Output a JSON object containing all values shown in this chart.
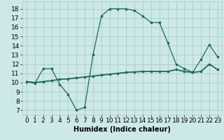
{
  "line1_x": [
    0,
    1,
    2,
    3,
    4,
    5,
    6,
    7,
    8,
    9,
    10,
    11,
    12,
    13,
    14,
    15,
    16,
    17,
    18,
    19,
    20,
    21,
    22,
    23
  ],
  "line1_y": [
    10.1,
    9.9,
    11.5,
    11.5,
    9.8,
    8.7,
    7.0,
    7.3,
    13.0,
    17.2,
    18.0,
    18.0,
    18.0,
    17.8,
    17.2,
    16.5,
    16.5,
    14.3,
    12.0,
    11.5,
    11.1,
    12.5,
    14.1,
    12.8
  ],
  "line2_x": [
    0,
    1,
    2,
    3,
    4,
    5,
    6,
    7,
    8,
    9,
    10,
    11,
    12,
    13,
    14,
    15,
    16,
    17,
    18,
    19,
    20,
    21,
    22,
    23
  ],
  "line2_y": [
    10.1,
    10.0,
    10.1,
    10.2,
    10.35,
    10.4,
    10.5,
    10.6,
    10.7,
    10.8,
    10.9,
    11.0,
    11.1,
    11.15,
    11.2,
    11.2,
    11.2,
    11.2,
    11.4,
    11.2,
    11.1,
    11.2,
    12.0,
    11.4
  ],
  "line_color": "#1a6b5e",
  "bg_color": "#cde8e8",
  "grid_color": "#aacccc",
  "xlabel": "Humidex (Indice chaleur)",
  "xlim": [
    -0.5,
    23.5
  ],
  "ylim": [
    6.5,
    18.8
  ],
  "xticks": [
    0,
    1,
    2,
    3,
    4,
    5,
    6,
    7,
    8,
    9,
    10,
    11,
    12,
    13,
    14,
    15,
    16,
    17,
    18,
    19,
    20,
    21,
    22,
    23
  ],
  "yticks": [
    7,
    8,
    9,
    10,
    11,
    12,
    13,
    14,
    15,
    16,
    17,
    18
  ],
  "xlabel_fontsize": 7,
  "tick_fontsize": 6.5
}
